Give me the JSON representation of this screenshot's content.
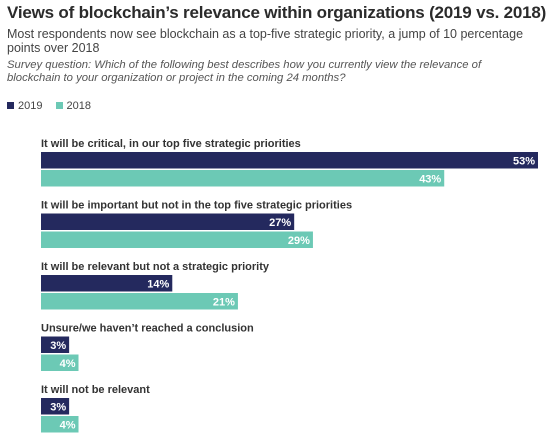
{
  "chart_data": {
    "type": "bar",
    "orientation": "horizontal",
    "title": "Views of blockchain’s relevance within organizations (2019 vs. 2018)",
    "subtitle": "Most respondents now see blockchain as a top-five strategic priority, a jump of 10 percentage points over 2018",
    "note": "Survey question: Which of the following best describes how you currently view the relevance of blockchain to your organization or project in the coming 24 months?",
    "categories": [
      "It will be critical, in our top five strategic priorities",
      "It will be important but not in the top five strategic priorities",
      "It will be relevant but not a strategic priority",
      "Unsure/we haven’t reached a conclusion",
      "It will not be relevant"
    ],
    "series": [
      {
        "name": "2019",
        "color": "#24295e",
        "values": [
          53,
          27,
          14,
          3,
          3
        ]
      },
      {
        "name": "2018",
        "color": "#6cc9b5",
        "values": [
          43,
          29,
          21,
          4,
          4
        ]
      }
    ],
    "value_suffix": "%",
    "xlim": [
      0,
      53
    ],
    "legend_position": "top-left",
    "grid": false
  }
}
